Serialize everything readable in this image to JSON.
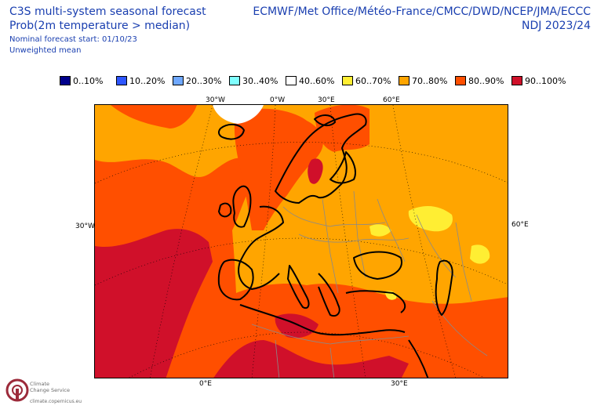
{
  "header": {
    "title": "C3S multi-system seasonal forecast",
    "subtitle": "Prob(2m temperature > median)",
    "start": "Nominal forecast start: 01/10/23",
    "mean": "Unweighted mean",
    "systems": "ECMWF/Met Office/Météo-France/CMCC/DWD/NCEP/JMA/ECCC",
    "period": "NDJ 2023/24"
  },
  "legend": [
    {
      "label": "0..10%",
      "color": "#00008b"
    },
    {
      "label": "10..20%",
      "color": "#2e56ff"
    },
    {
      "label": "20..30%",
      "color": "#6fa8ff"
    },
    {
      "label": "30..40%",
      "color": "#80ffff"
    },
    {
      "label": "40..60%",
      "color": "#ffffff"
    },
    {
      "label": "60..70%",
      "color": "#ffee33"
    },
    {
      "label": "70..80%",
      "color": "#ffa500"
    },
    {
      "label": "80..90%",
      "color": "#ff4f00"
    },
    {
      "label": "90..100%",
      "color": "#d0102a"
    }
  ],
  "axes": {
    "top": [
      "30°W",
      "0°W",
      "30°E",
      "60°E"
    ],
    "left": "30°W",
    "right": "60°E",
    "bottom": [
      "0°E",
      "30°E"
    ]
  },
  "logo": {
    "name_line1": "Climate",
    "name_line2": "Change Service",
    "url": "climate.copernicus.eu"
  }
}
